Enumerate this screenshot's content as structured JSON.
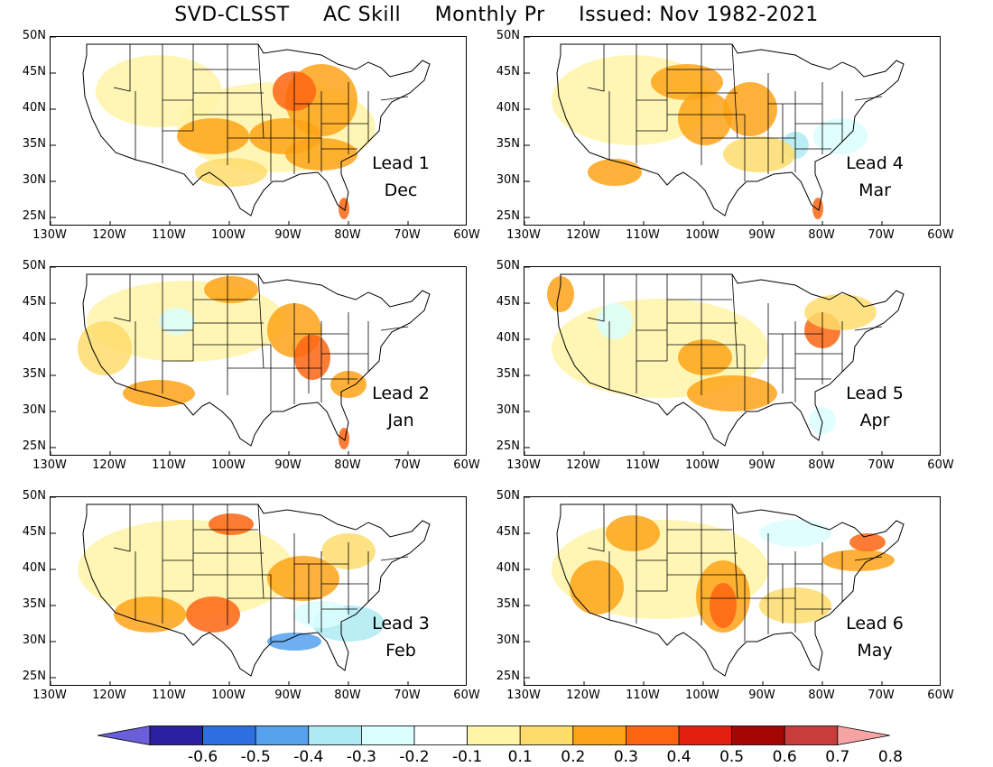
{
  "title": "SVD-CLSST     AC Skill     Monthly Pr     Issued: Nov 1982-2021",
  "y_ticks": [
    "50N",
    "45N",
    "40N",
    "35N",
    "30N",
    "25N"
  ],
  "x_ticks": [
    "130W",
    "120W",
    "110W",
    "100W",
    "90W",
    "80W",
    "70W",
    "60W"
  ],
  "panels": [
    {
      "lead_label": "Lead 1",
      "month": "Dec"
    },
    {
      "lead_label": "Lead 4",
      "month": "Mar"
    },
    {
      "lead_label": "Lead 2",
      "month": "Jan"
    },
    {
      "lead_label": "Lead 5",
      "month": "Apr"
    },
    {
      "lead_label": "Lead 3",
      "month": "Feb"
    },
    {
      "lead_label": "Lead 6",
      "month": "May"
    }
  ],
  "colorbar": {
    "labels": [
      "-0.6",
      "-0.5",
      "-0.4",
      "-0.3",
      "-0.2",
      "-0.1",
      "0.1",
      "0.2",
      "0.3",
      "0.4",
      "0.5",
      "0.6",
      "0.7",
      "0.8"
    ],
    "colors": [
      "#6b5fd9",
      "#2b1fa3",
      "#2d6fe0",
      "#55a1ee",
      "#aeeaf2",
      "#dafefe",
      "#ffffff",
      "#fff5a8",
      "#fedc6c",
      "#fea318",
      "#fd6512",
      "#e21f0e",
      "#a40703",
      "#c83c3c",
      "#f6a3a3"
    ]
  }
}
